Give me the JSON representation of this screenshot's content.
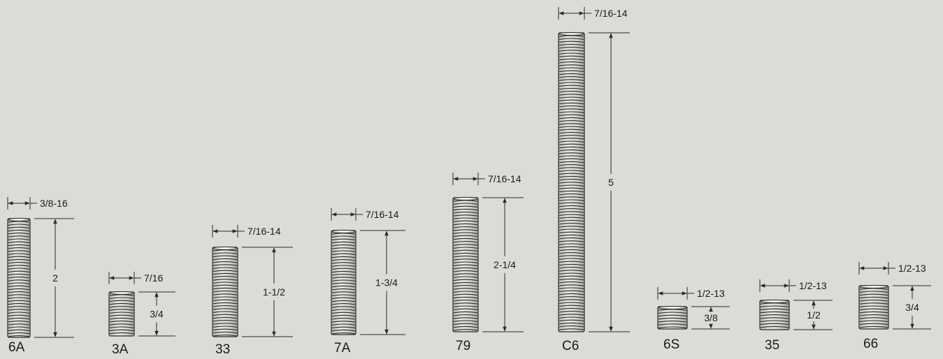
{
  "background": "#dcdbd7",
  "stroke_color": "#2a2a2a",
  "parts": [
    {
      "id": "6A",
      "label": "6A",
      "thread": "3/8-16",
      "length": "2"
    },
    {
      "id": "3A",
      "label": "3A",
      "thread": "7/16",
      "length": "3/4"
    },
    {
      "id": "33",
      "label": "33",
      "thread": "7/16-14",
      "length": "1-1/2"
    },
    {
      "id": "7A",
      "label": "7A",
      "thread": "7/16-14",
      "length": "1-3/4"
    },
    {
      "id": "79",
      "label": "79",
      "thread": "7/16-14",
      "length": "2-1/4"
    },
    {
      "id": "C6",
      "label": "C6",
      "thread": "7/16-14",
      "length": "5"
    },
    {
      "id": "6S",
      "label": "6S",
      "thread": "1/2-13",
      "length": "3/8"
    },
    {
      "id": "35",
      "label": "35",
      "thread": "1/2-13",
      "length": "1/2"
    },
    {
      "id": "66",
      "label": "66",
      "thread": "1/2-13",
      "length": "3/4"
    }
  ]
}
